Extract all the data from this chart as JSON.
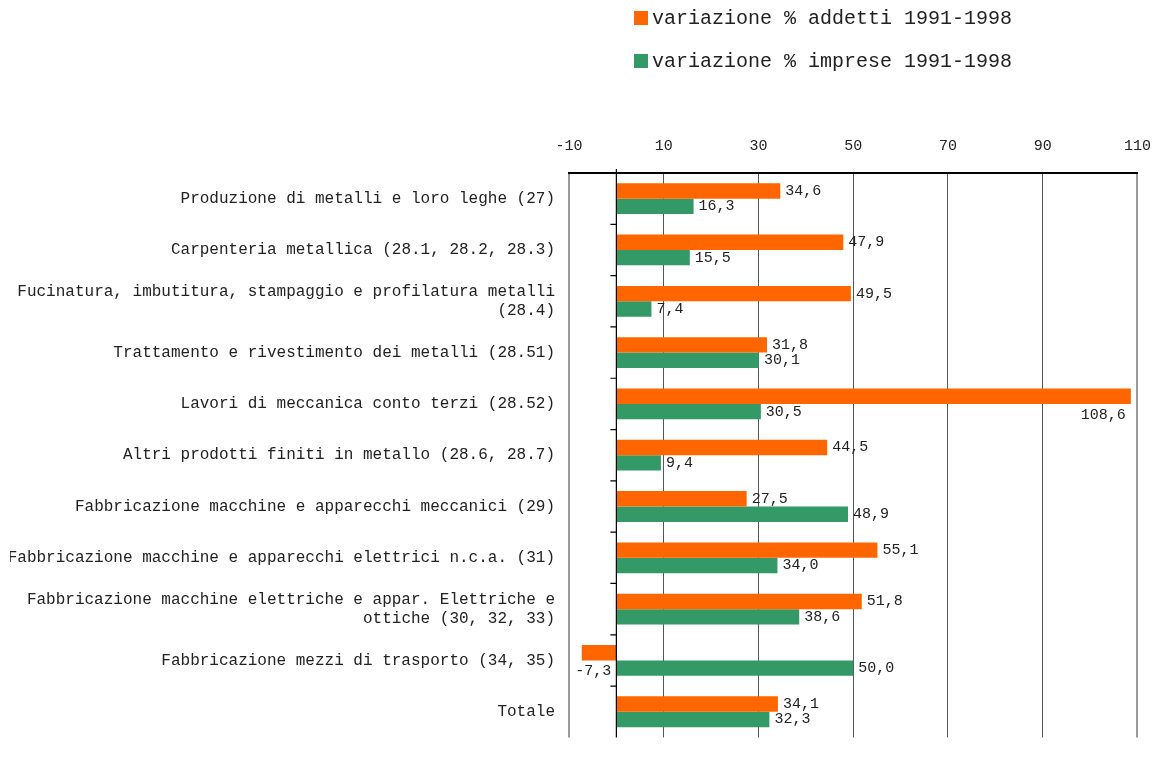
{
  "chart_data": {
    "type": "bar",
    "orientation": "horizontal",
    "categories": [
      "Produzione di metalli e loro leghe (27)",
      "Carpenteria metallica (28.1, 28.2, 28.3)",
      "Fucinatura, imbutitura, stampaggio e profilatura metalli (28.4)",
      "Trattamento e rivestimento dei metalli (28.51)",
      "Lavori di meccanica conto terzi (28.52)",
      "Altri prodotti finiti in metallo (28.6, 28.7)",
      "Fabbricazione macchine e apparecchi meccanici (29)",
      "Fabbricazione macchine e apparecchi elettrici n.c.a. (31)",
      "Fabbricazione macchine elettriche e appar. Elettriche e ottiche (30, 32, 33)",
      "Fabbricazione mezzi di trasporto (34, 35)",
      "Totale"
    ],
    "series": [
      {
        "name": "variazione % addetti 1991-1998",
        "color": "#ff6600",
        "values": [
          34.6,
          47.9,
          49.5,
          31.8,
          108.6,
          44.5,
          27.5,
          55.1,
          51.8,
          -7.3,
          34.1
        ],
        "value_labels": [
          "34,6",
          "47,9",
          "49,5",
          "31,8",
          "108,6",
          "44,5",
          "27,5",
          "55,1",
          "51,8",
          "-7,3",
          "34,1"
        ]
      },
      {
        "name": "variazione % imprese 1991-1998",
        "color": "#339966",
        "values": [
          16.3,
          15.5,
          7.4,
          30.1,
          30.5,
          9.4,
          48.9,
          34.0,
          38.6,
          50.0,
          32.3
        ],
        "value_labels": [
          "16,3",
          "15,5",
          "7,4",
          "30,1",
          "30,5",
          "9,4",
          "48,9",
          "34,0",
          "38,6",
          "50,0",
          "32,3"
        ]
      }
    ],
    "xlim": [
      -10,
      110
    ],
    "xticks": [
      -10,
      10,
      30,
      50,
      70,
      90,
      110
    ],
    "grid": "x",
    "legend": "top"
  }
}
